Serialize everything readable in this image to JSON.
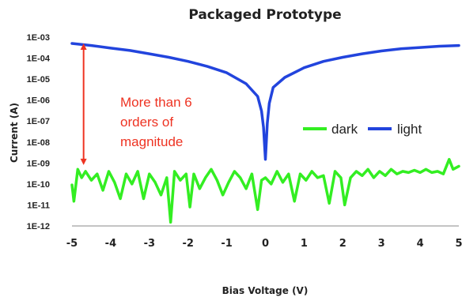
{
  "chart_data": {
    "type": "line",
    "title": "Packaged Prototype",
    "xlabel": "Bias Voltage (V)",
    "ylabel": "Current (A)",
    "xlim": [
      -5,
      5
    ],
    "ylim_log10": [
      -12,
      -3
    ],
    "y_scale": "log",
    "x_ticks": [
      "-5",
      "-4",
      "-3",
      "-2",
      "-1",
      "0",
      "1",
      "2",
      "3",
      "4",
      "5"
    ],
    "y_ticks": [
      "1E-03",
      "1E-04",
      "1E-05",
      "1E-06",
      "1E-07",
      "1E-08",
      "1E-09",
      "1E-10",
      "1E-11",
      "1E-12"
    ],
    "legend_position": "right-center",
    "annotation": {
      "lines": [
        "More than 6",
        "orders of",
        "magnitude"
      ],
      "color": "#ee3322",
      "arrow_x": -4.7,
      "arrow_from": 0.0005,
      "arrow_to": 8e-10
    },
    "series": [
      {
        "name": "light",
        "color": "#2244dd",
        "x": [
          -5,
          -4.5,
          -4,
          -3.5,
          -3,
          -2.5,
          -2,
          -1.5,
          -1,
          -0.5,
          -0.2,
          -0.1,
          -0.05,
          0,
          0.05,
          0.1,
          0.2,
          0.5,
          1,
          1.5,
          2,
          2.5,
          3,
          3.5,
          4,
          4.5,
          5
        ],
        "y": [
          0.0005,
          0.0004,
          0.0003,
          0.00023,
          0.00016,
          0.00011,
          7e-05,
          4e-05,
          2e-05,
          6e-06,
          1.5e-06,
          3e-07,
          5e-08,
          1.5e-09,
          8e-08,
          7e-07,
          4e-06,
          1.2e-05,
          3.5e-05,
          7e-05,
          0.00011,
          0.00016,
          0.00022,
          0.00028,
          0.00032,
          0.00037,
          0.0004
        ]
      },
      {
        "name": "dark",
        "color": "#33ee22",
        "x": [
          -5,
          -4.95,
          -4.85,
          -4.75,
          -4.65,
          -4.5,
          -4.35,
          -4.2,
          -4.05,
          -3.9,
          -3.75,
          -3.6,
          -3.45,
          -3.3,
          -3.15,
          -3.0,
          -2.85,
          -2.7,
          -2.55,
          -2.45,
          -2.35,
          -2.2,
          -2.05,
          -1.95,
          -1.85,
          -1.7,
          -1.55,
          -1.4,
          -1.25,
          -1.1,
          -0.95,
          -0.8,
          -0.65,
          -0.5,
          -0.35,
          -0.2,
          -0.1,
          0,
          0.15,
          0.3,
          0.45,
          0.6,
          0.75,
          0.9,
          1.05,
          1.2,
          1.35,
          1.5,
          1.65,
          1.8,
          1.95,
          2.05,
          2.2,
          2.35,
          2.5,
          2.65,
          2.8,
          2.95,
          3.1,
          3.25,
          3.4,
          3.55,
          3.7,
          3.85,
          4.0,
          4.15,
          4.3,
          4.45,
          4.6,
          4.75,
          4.85,
          5
        ],
        "y": [
          9e-11,
          1.5e-11,
          5e-10,
          2e-10,
          4e-10,
          1.5e-10,
          3e-10,
          5e-11,
          4e-10,
          1.2e-10,
          2e-11,
          3e-10,
          1e-10,
          4e-10,
          2e-11,
          3e-10,
          1.2e-10,
          3e-11,
          2e-10,
          1.5e-12,
          4e-10,
          1.5e-10,
          3e-10,
          8e-12,
          3e-10,
          6e-11,
          2e-10,
          5e-10,
          1.5e-10,
          3e-11,
          1.2e-10,
          4e-10,
          2e-10,
          6e-11,
          3e-10,
          6e-12,
          1.5e-10,
          2e-10,
          1e-10,
          4e-10,
          1.2e-10,
          3e-10,
          1.5e-11,
          3e-10,
          1.5e-10,
          4e-10,
          2e-10,
          2.5e-10,
          1.2e-11,
          4e-10,
          2e-10,
          1e-11,
          2e-10,
          4e-10,
          2.5e-10,
          5e-10,
          2e-10,
          4e-10,
          2.5e-10,
          5e-10,
          3e-10,
          4e-10,
          3.5e-10,
          4.5e-10,
          3.5e-10,
          5e-10,
          3.5e-10,
          4e-10,
          3e-10,
          1.5e-09,
          5e-10,
          7e-10
        ]
      }
    ]
  }
}
